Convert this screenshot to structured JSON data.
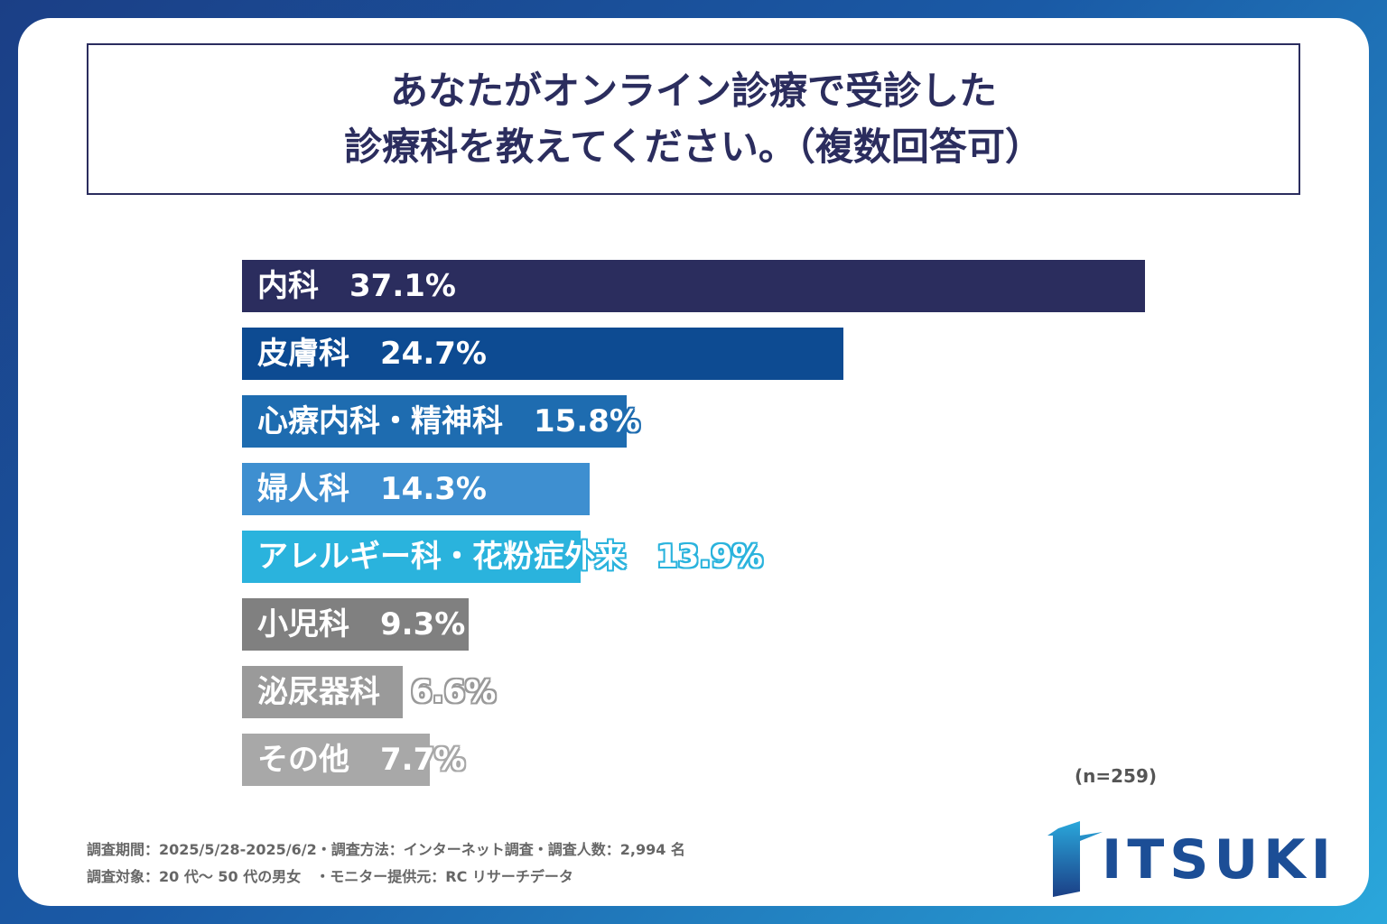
{
  "title": {
    "line1": "あなたがオンライン診療で受診した",
    "line2": "診療科を教えてください。（複数回答可）"
  },
  "chart_data": {
    "type": "bar",
    "orientation": "horizontal",
    "title": "あなたがオンライン診療で受診した診療科を教えてください。（複数回答可）",
    "categories": [
      "内科",
      "皮膚科",
      "心療内科・精神科",
      "婦人科",
      "アレルギー科・花粉症外来",
      "小児科",
      "泌尿器科",
      "その他"
    ],
    "values": [
      37.1,
      24.7,
      15.8,
      14.3,
      13.9,
      9.3,
      6.6,
      7.7
    ],
    "value_labels": [
      "37.1%",
      "24.7%",
      "15.8%",
      "14.3%",
      "13.9%",
      "9.3%",
      "6.6%",
      "7.7%"
    ],
    "colors": [
      "#2b2d5e",
      "#0d4b92",
      "#1e6cb0",
      "#3e8fd0",
      "#2ab3dd",
      "#808080",
      "#9a9a9a",
      "#a8a8a8"
    ],
    "xlim": [
      0,
      37.1
    ],
    "grid": false,
    "legend": "none",
    "unit": "%"
  },
  "sample_size": "(n=259)",
  "footer": {
    "line1": "調査期間：2025/5/28-2025/6/2・調査方法：インターネット調査・調査人数：2,994 名",
    "line2": "調査対象：20 代～ 50 代の男女　・モニター提供元：RC リサーチデータ"
  },
  "logo": {
    "text": "ITSUKI",
    "color": "#1c4e96"
  }
}
